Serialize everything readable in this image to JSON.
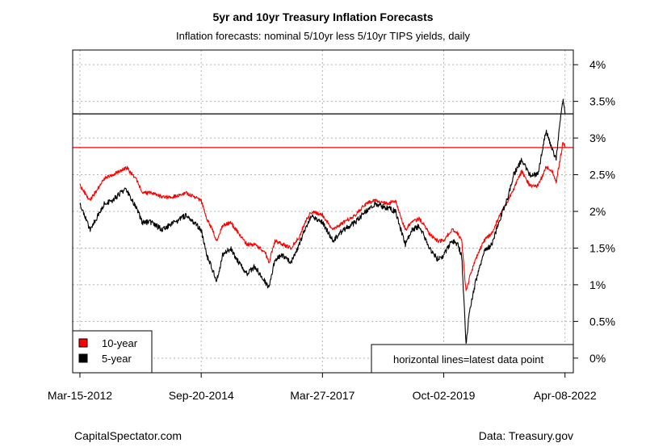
{
  "title": "5yr and 10yr Treasury Inflation Forecasts",
  "subtitle": "Inflation forecasts: nominal 5/10yr less 5/10yr TIPS yields, daily",
  "source_left": "CapitalSpectator.com",
  "source_right": "Data: Treasury.gov",
  "chart_data": {
    "type": "line",
    "xlabel": "",
    "ylabel": "",
    "x_ticks": [
      "Mar-15-2012",
      "Sep-20-2014",
      "Mar-27-2017",
      "Oct-02-2019",
      "Apr-08-2022"
    ],
    "y_ticks": [
      "0%",
      "0.5%",
      "1%",
      "1.5%",
      "2%",
      "2.5%",
      "3%",
      "3.5%",
      "4%"
    ],
    "ylim": [
      -0.2,
      4.2
    ],
    "grid": true,
    "y_axis_side": "right",
    "legend_position": "bottom-left",
    "note": "horizontal lines=latest data point",
    "hlines": [
      {
        "series": "10-year",
        "value": 2.87,
        "color": "#ff0000"
      },
      {
        "series": "5-year",
        "value": 3.33,
        "color": "#000000"
      }
    ],
    "series": [
      {
        "name": "10-year",
        "color": "#ff0000",
        "points": [
          [
            "2012-03-15",
            2.35
          ],
          [
            "2012-06-01",
            2.15
          ],
          [
            "2012-09-15",
            2.45
          ],
          [
            "2012-11-15",
            2.5
          ],
          [
            "2013-01-15",
            2.55
          ],
          [
            "2013-03-01",
            2.6
          ],
          [
            "2013-05-15",
            2.45
          ],
          [
            "2013-07-01",
            2.25
          ],
          [
            "2013-09-01",
            2.25
          ],
          [
            "2013-12-01",
            2.2
          ],
          [
            "2014-03-01",
            2.2
          ],
          [
            "2014-06-01",
            2.25
          ],
          [
            "2014-09-20",
            2.15
          ],
          [
            "2014-11-01",
            1.9
          ],
          [
            "2014-12-15",
            1.75
          ],
          [
            "2015-01-15",
            1.6
          ],
          [
            "2015-03-01",
            1.8
          ],
          [
            "2015-05-01",
            1.85
          ],
          [
            "2015-07-01",
            1.7
          ],
          [
            "2015-09-01",
            1.55
          ],
          [
            "2015-11-01",
            1.55
          ],
          [
            "2016-01-15",
            1.45
          ],
          [
            "2016-02-15",
            1.3
          ],
          [
            "2016-04-01",
            1.6
          ],
          [
            "2016-06-01",
            1.55
          ],
          [
            "2016-08-01",
            1.5
          ],
          [
            "2016-10-01",
            1.65
          ],
          [
            "2016-11-15",
            1.85
          ],
          [
            "2017-01-01",
            2.0
          ],
          [
            "2017-03-27",
            1.95
          ],
          [
            "2017-06-15",
            1.75
          ],
          [
            "2017-09-01",
            1.85
          ],
          [
            "2017-12-01",
            1.95
          ],
          [
            "2018-02-15",
            2.1
          ],
          [
            "2018-05-01",
            2.15
          ],
          [
            "2018-08-01",
            2.1
          ],
          [
            "2018-10-01",
            2.15
          ],
          [
            "2018-12-15",
            1.75
          ],
          [
            "2019-02-01",
            1.85
          ],
          [
            "2019-04-01",
            1.9
          ],
          [
            "2019-06-15",
            1.7
          ],
          [
            "2019-08-15",
            1.6
          ],
          [
            "2019-10-02",
            1.6
          ],
          [
            "2019-12-01",
            1.75
          ],
          [
            "2020-01-15",
            1.7
          ],
          [
            "2020-02-15",
            1.6
          ],
          [
            "2020-03-19",
            0.9
          ],
          [
            "2020-04-15",
            1.1
          ],
          [
            "2020-06-01",
            1.35
          ],
          [
            "2020-08-01",
            1.6
          ],
          [
            "2020-10-01",
            1.7
          ],
          [
            "2020-12-01",
            1.95
          ],
          [
            "2021-02-01",
            2.15
          ],
          [
            "2021-03-15",
            2.3
          ],
          [
            "2021-05-15",
            2.55
          ],
          [
            "2021-07-15",
            2.35
          ],
          [
            "2021-09-15",
            2.35
          ],
          [
            "2021-11-15",
            2.6
          ],
          [
            "2022-01-01",
            2.55
          ],
          [
            "2022-01-31",
            2.4
          ],
          [
            "2022-03-01",
            2.7
          ],
          [
            "2022-03-25",
            2.95
          ],
          [
            "2022-04-08",
            2.87
          ]
        ]
      },
      {
        "name": "5-year",
        "color": "#000000",
        "points": [
          [
            "2012-03-15",
            2.1
          ],
          [
            "2012-06-01",
            1.75
          ],
          [
            "2012-09-15",
            2.1
          ],
          [
            "2012-11-15",
            2.15
          ],
          [
            "2013-01-15",
            2.25
          ],
          [
            "2013-03-01",
            2.3
          ],
          [
            "2013-05-15",
            2.05
          ],
          [
            "2013-07-01",
            1.85
          ],
          [
            "2013-09-01",
            1.85
          ],
          [
            "2013-12-01",
            1.75
          ],
          [
            "2014-03-01",
            1.85
          ],
          [
            "2014-06-01",
            1.95
          ],
          [
            "2014-09-20",
            1.75
          ],
          [
            "2014-11-01",
            1.4
          ],
          [
            "2014-12-15",
            1.2
          ],
          [
            "2015-01-15",
            1.05
          ],
          [
            "2015-03-01",
            1.4
          ],
          [
            "2015-05-01",
            1.5
          ],
          [
            "2015-07-01",
            1.3
          ],
          [
            "2015-09-01",
            1.15
          ],
          [
            "2015-11-01",
            1.25
          ],
          [
            "2016-01-15",
            1.05
          ],
          [
            "2016-02-15",
            0.95
          ],
          [
            "2016-04-01",
            1.35
          ],
          [
            "2016-06-01",
            1.4
          ],
          [
            "2016-08-01",
            1.3
          ],
          [
            "2016-10-01",
            1.55
          ],
          [
            "2016-11-15",
            1.75
          ],
          [
            "2017-01-01",
            1.95
          ],
          [
            "2017-03-27",
            1.85
          ],
          [
            "2017-06-15",
            1.6
          ],
          [
            "2017-09-01",
            1.75
          ],
          [
            "2017-12-01",
            1.85
          ],
          [
            "2018-02-15",
            2.0
          ],
          [
            "2018-05-01",
            2.1
          ],
          [
            "2018-08-01",
            2.05
          ],
          [
            "2018-10-01",
            2.0
          ],
          [
            "2018-12-15",
            1.55
          ],
          [
            "2019-02-01",
            1.75
          ],
          [
            "2019-04-01",
            1.8
          ],
          [
            "2019-06-15",
            1.5
          ],
          [
            "2019-08-15",
            1.35
          ],
          [
            "2019-10-02",
            1.4
          ],
          [
            "2019-12-01",
            1.6
          ],
          [
            "2020-01-15",
            1.55
          ],
          [
            "2020-02-15",
            1.4
          ],
          [
            "2020-03-19",
            0.2
          ],
          [
            "2020-04-15",
            0.65
          ],
          [
            "2020-06-01",
            1.05
          ],
          [
            "2020-08-01",
            1.45
          ],
          [
            "2020-10-01",
            1.55
          ],
          [
            "2020-12-01",
            1.9
          ],
          [
            "2021-02-01",
            2.2
          ],
          [
            "2021-03-15",
            2.5
          ],
          [
            "2021-05-15",
            2.7
          ],
          [
            "2021-07-15",
            2.5
          ],
          [
            "2021-09-15",
            2.5
          ],
          [
            "2021-11-15",
            3.1
          ],
          [
            "2022-01-01",
            2.85
          ],
          [
            "2022-01-31",
            2.7
          ],
          [
            "2022-03-01",
            3.2
          ],
          [
            "2022-03-25",
            3.55
          ],
          [
            "2022-04-08",
            3.33
          ]
        ]
      }
    ]
  }
}
